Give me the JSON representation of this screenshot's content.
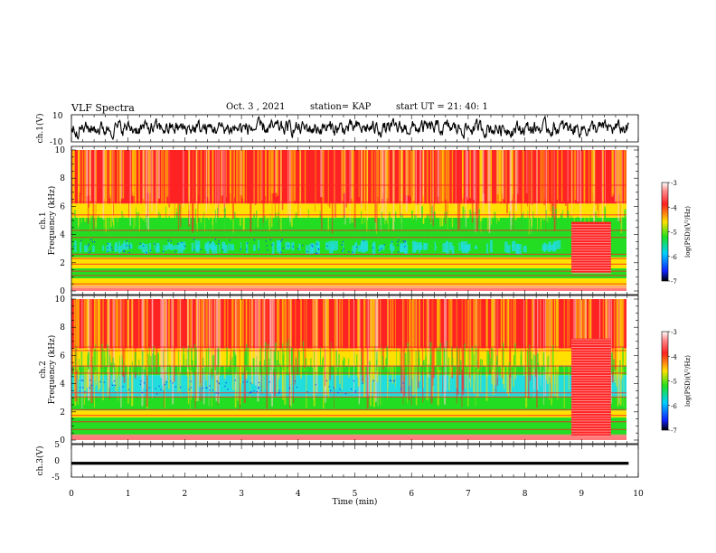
{
  "header": {
    "title": "VLF Spectra",
    "date": "Oct. 3 , 2021",
    "station": "station= KAP",
    "start": "start UT = 21: 40: 1"
  },
  "chart_data": [
    {
      "type": "line",
      "panel": "ch1-waveform",
      "ylabel": "ch.1(V)",
      "ylim": [
        -10,
        10
      ],
      "yticks": [
        "10",
        "-10"
      ],
      "xlim": [
        0,
        9.83
      ],
      "color": "#000000",
      "note_values": "noisy waveform, mostly between -6 and 6 V"
    },
    {
      "type": "heatmap",
      "panel": "ch1-spectrogram",
      "ylabel": "ch.1 Frequency (kHz)",
      "ylim": [
        0,
        10
      ],
      "yticks": [
        "0",
        "2",
        "4",
        "6",
        "8",
        "10"
      ],
      "xlim": [
        0,
        9.83
      ],
      "colorbar": {
        "label": "log(PSD)(V²/Hz)",
        "range": [
          -7,
          -3
        ],
        "ticks": [
          "-3",
          "-4",
          "-5",
          "-6",
          "-7"
        ]
      }
    },
    {
      "type": "heatmap",
      "panel": "ch2-spectrogram",
      "ylabel": "ch.2 Frequency (kHz)",
      "ylim": [
        0,
        10
      ],
      "yticks": [
        "0",
        "2",
        "4",
        "6",
        "8",
        "10"
      ],
      "xlim": [
        0,
        9.83
      ],
      "colorbar": {
        "label": "log(PSD)(V²/Hz)",
        "range": [
          -7,
          -3
        ],
        "ticks": [
          "-3",
          "-4",
          "-5",
          "-6",
          "-7"
        ]
      }
    },
    {
      "type": "line",
      "panel": "ch3-waveform",
      "ylabel": "ch.3(V)",
      "ylim": [
        -5,
        5
      ],
      "yticks": [
        "5",
        "0",
        "-5"
      ],
      "xlim": [
        0,
        9.83
      ],
      "values_approx": [
        -1.2,
        -0.3
      ],
      "color": "#000000"
    }
  ],
  "xaxis": {
    "label": "Time (min)",
    "range": [
      0,
      10
    ],
    "ticks": [
      "0",
      "1",
      "2",
      "3",
      "4",
      "5",
      "6",
      "7",
      "8",
      "9",
      "10"
    ]
  },
  "colors": {
    "red": "#ff2222",
    "yellow": "#ffe000",
    "green": "#22dd22",
    "cyan": "#22dddd",
    "blue": "#1e3cff"
  }
}
